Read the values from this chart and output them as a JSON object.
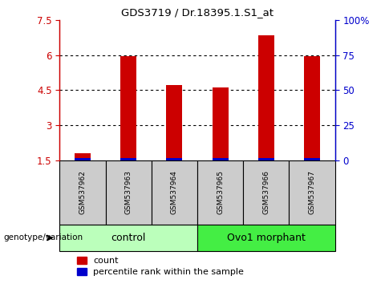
{
  "title": "GDS3719 / Dr.18395.1.S1_at",
  "samples": [
    "GSM537962",
    "GSM537963",
    "GSM537964",
    "GSM537965",
    "GSM537966",
    "GSM537967"
  ],
  "count_values": [
    1.8,
    5.95,
    4.72,
    4.6,
    6.85,
    5.95
  ],
  "ylim_left": [
    1.5,
    7.5
  ],
  "ylim_right": [
    0,
    100
  ],
  "yticks_left": [
    1.5,
    3.0,
    4.5,
    6.0,
    7.5
  ],
  "yticks_right": [
    0,
    25,
    50,
    75,
    100
  ],
  "ytick_labels_left": [
    "1.5",
    "3",
    "4.5",
    "6",
    "7.5"
  ],
  "ytick_labels_right": [
    "0",
    "25",
    "50",
    "75",
    "100%"
  ],
  "bar_color_red": "#CC0000",
  "bar_color_blue": "#0000CC",
  "bar_width": 0.35,
  "blue_bar_height": 0.1,
  "group_label_text": "genotype/variation",
  "legend_count": "count",
  "legend_percentile": "percentile rank within the sample",
  "sample_box_color": "#cccccc",
  "group_box_color_control": "#bbffbb",
  "group_box_color_morphant": "#44ee44",
  "control_label": "control",
  "morphant_label": "Ovo1 morphant"
}
